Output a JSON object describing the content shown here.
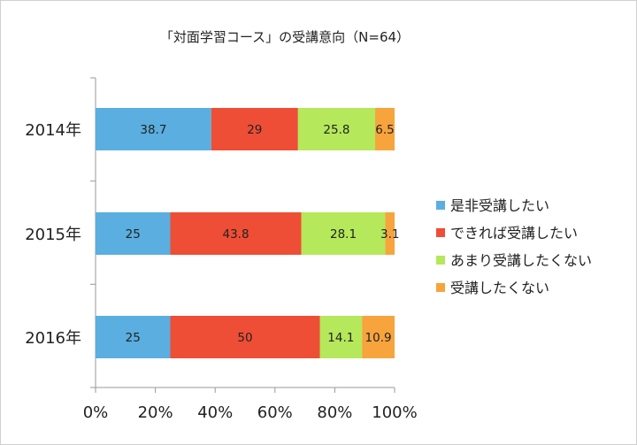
{
  "chart_data": {
    "type": "bar",
    "orientation": "horizontal",
    "stacked": "percent",
    "title": "「対面学習コース」の受講意向（N=64）",
    "categories": [
      "2014年",
      "2015年",
      "2016年"
    ],
    "series": [
      {
        "name": "是非受講したい",
        "values": [
          38.7,
          25,
          25
        ],
        "color": "#5aaee0"
      },
      {
        "name": "できれば受講したい",
        "values": [
          29,
          43.8,
          50
        ],
        "color": "#ee4e35"
      },
      {
        "name": "あまり受講したくない",
        "values": [
          25.8,
          28.1,
          14.1
        ],
        "color": "#b5e85a"
      },
      {
        "name": "受講したくない",
        "values": [
          6.5,
          3.1,
          10.9
        ],
        "color": "#f7a43d"
      }
    ],
    "xticks": [
      "0%",
      "20%",
      "40%",
      "60%",
      "80%",
      "100%"
    ],
    "xlim": [
      0,
      100
    ],
    "grid": false,
    "legend": "right"
  }
}
